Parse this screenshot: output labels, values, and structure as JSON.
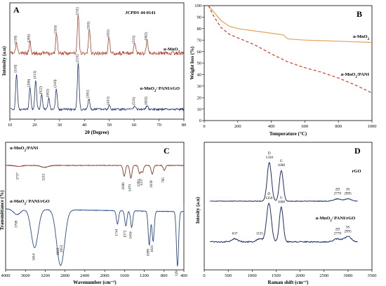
{
  "chart_data": [
    {
      "panel": "A",
      "type": "line",
      "xlabel": "2θ (Degree)",
      "ylabel": "Intensity (a.u)",
      "xlim": [
        10,
        80
      ],
      "xticks": [
        10,
        20,
        30,
        40,
        50,
        60,
        70,
        80
      ],
      "reference": "JCPDS 44-0141",
      "series": [
        {
          "name": "α-MnO2",
          "color": "#b5432f",
          "peaks": [
            {
              "x": 12.7,
              "h": 0.25,
              "label": "(110)"
            },
            {
              "x": 18.1,
              "h": 0.28,
              "label": "(200)"
            },
            {
              "x": 28.8,
              "h": 0.5,
              "label": "(310)"
            },
            {
              "x": 37.5,
              "h": 0.95,
              "label": "(211)"
            },
            {
              "x": 42.0,
              "h": 0.6,
              "label": "(301)"
            },
            {
              "x": 49.9,
              "h": 0.4,
              "label": "(411)"
            },
            {
              "x": 60.2,
              "h": 0.25,
              "label": "(521)"
            },
            {
              "x": 65.2,
              "h": 0.33,
              "label": "(002)"
            }
          ]
        },
        {
          "name": "α-MnO2/ PANI/rGO",
          "color": "#1d2f6b",
          "peaks": [
            {
              "x": 12.7,
              "h": 0.75,
              "label": "(110)"
            },
            {
              "x": 18.1,
              "h": 0.45,
              "label": "(200)"
            },
            {
              "x": 20.4,
              "h": 0.62,
              "label": "(113)"
            },
            {
              "x": 22.8,
              "h": 0.3,
              "label": "(022)"
            },
            {
              "x": 25.7,
              "h": 0.24,
              "label": "(002)"
            },
            {
              "x": 28.7,
              "h": 0.44,
              "label": "(310)"
            },
            {
              "x": 37.5,
              "h": 0.97,
              "label": "(211)"
            },
            {
              "x": 41.8,
              "h": 0.22,
              "label": "(301)"
            },
            {
              "x": 50.0,
              "h": 0.08,
              "label": "(411)"
            },
            {
              "x": 60.2,
              "h": 0.07,
              "label": "(521)"
            },
            {
              "x": 65.2,
              "h": 0.08,
              "label": "(002)"
            }
          ]
        }
      ]
    },
    {
      "panel": "B",
      "type": "line",
      "xlabel": "Temperature (°C)",
      "ylabel": "Weight loss (%)",
      "xlim": [
        0,
        1000
      ],
      "ylim": [
        0,
        100
      ],
      "xticks": [
        0,
        200,
        400,
        600,
        800,
        1000
      ],
      "yticks": [
        0,
        10,
        20,
        30,
        40,
        50,
        60,
        70,
        80,
        90,
        100
      ],
      "series": [
        {
          "name": "α-MnO2",
          "color": "#e0a45a",
          "style": "solid",
          "x": [
            25,
            60,
            100,
            150,
            200,
            300,
            400,
            470,
            500,
            600,
            700,
            800,
            900,
            1000
          ],
          "y": [
            100,
            94,
            87,
            82,
            80,
            78,
            76,
            74.5,
            71,
            70,
            69.5,
            69,
            68.5,
            68
          ]
        },
        {
          "name": "α-MnO2/PANI",
          "color": "#cc3b22",
          "style": "dashed",
          "x": [
            25,
            60,
            100,
            150,
            200,
            300,
            400,
            500,
            600,
            700,
            800,
            900,
            1000
          ],
          "y": [
            100,
            90,
            81,
            75,
            72,
            66,
            58,
            51,
            46,
            42,
            37,
            31,
            24
          ]
        }
      ]
    },
    {
      "panel": "C",
      "type": "line",
      "xlabel": "Wavenumber (cm⁻¹)",
      "ylabel": "Transmittance (%)",
      "xlim": [
        4000,
        400
      ],
      "xticks": [
        4000,
        3600,
        3200,
        2800,
        2400,
        2000,
        1600,
        1200,
        800,
        400
      ],
      "series": [
        {
          "name": "α-MnO2/PANI",
          "color": "#8a3a25",
          "bands": [
            {
              "x": 3737,
              "d": 0.05,
              "label": "3737"
            },
            {
              "x": 3215,
              "d": 0.1,
              "label": "3215"
            },
            {
              "x": 1606,
              "d": 0.55,
              "label": "1606"
            },
            {
              "x": 1470,
              "d": 0.65,
              "label": "1470"
            },
            {
              "x": 1294,
              "d": 0.4,
              "label": "1294"
            },
            {
              "x": 1237,
              "d": 0.35,
              "label": "1237"
            },
            {
              "x": 1039,
              "d": 0.45,
              "label": "1039"
            },
            {
              "x": 795,
              "d": 0.25,
              "label": "795"
            }
          ]
        },
        {
          "name": "α-MnO2/ PANI/rGO",
          "color": "#2a4c8c",
          "bands": [
            {
              "x": 3769,
              "d": 0.1,
              "label": "3769"
            },
            {
              "x": 3414,
              "d": 0.7,
              "label": "3414"
            },
            {
              "x": 2922,
              "d": 0.6,
              "label": "2922"
            },
            {
              "x": 2853,
              "d": 0.55,
              "label": "2853"
            },
            {
              "x": 1741,
              "d": 0.25,
              "label": "1741"
            },
            {
              "x": 1572,
              "d": 0.28,
              "label": "1572"
            },
            {
              "x": 1454,
              "d": 0.3,
              "label": "1454"
            },
            {
              "x": 1099,
              "d": 0.62,
              "label": "1099"
            },
            {
              "x": 1021,
              "d": 0.55,
              "label": "1021"
            },
            {
              "x": 529,
              "d": 1.0,
              "label": "529"
            }
          ]
        }
      ]
    },
    {
      "panel": "D",
      "type": "line",
      "xlabel": "Raman shift (cm⁻¹)",
      "ylabel": "Intesity (a.u)",
      "xlim": [
        0,
        3500
      ],
      "xticks": [
        0,
        500,
        1000,
        1500,
        2000,
        2500,
        3000,
        3500
      ],
      "series": [
        {
          "name": "rGO",
          "color": "#1d2f6b",
          "peaks": [
            {
              "x": 1358,
              "h": 1.0,
              "w": 45,
              "label": "D\n1358"
            },
            {
              "x": 1608,
              "h": 0.8,
              "w": 40,
              "label": "G\n1608"
            },
            {
              "x": 2779,
              "h": 0.06,
              "w": 70,
              "label": "2D\n2779"
            },
            {
              "x": 2995,
              "h": 0.06,
              "w": 70,
              "label": "3S\n2995"
            }
          ]
        },
        {
          "name": "α-MnO2/ PANI/rGO",
          "color": "#1d2f6b",
          "peaks": [
            {
              "x": 637,
              "h": 0.08,
              "w": 60,
              "label": "637"
            },
            {
              "x": 1155,
              "h": 0.08,
              "w": 60,
              "label": "1155"
            },
            {
              "x": 1350,
              "h": 1.0,
              "w": 50,
              "label": "D\n1350"
            },
            {
              "x": 1608,
              "h": 0.9,
              "w": 40,
              "label": "G\n1608"
            },
            {
              "x": 2779,
              "h": 0.08,
              "w": 70,
              "label": "2D\n2779"
            },
            {
              "x": 2995,
              "h": 0.14,
              "w": 70,
              "label": "3S\n2995"
            }
          ]
        }
      ]
    }
  ]
}
